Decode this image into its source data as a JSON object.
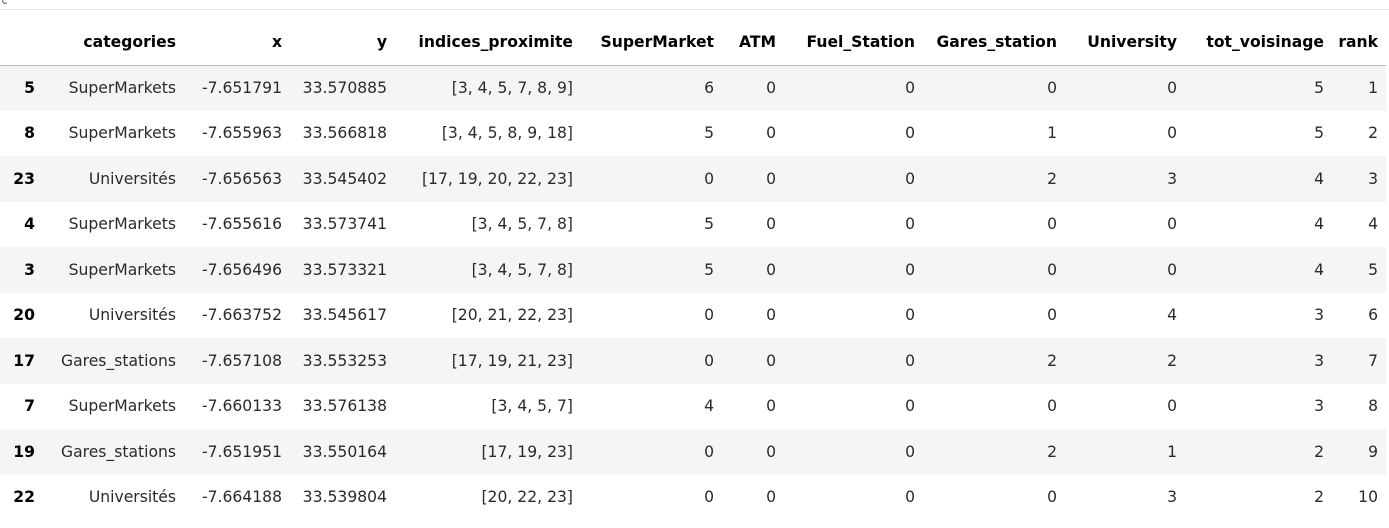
{
  "table": {
    "columns": [
      "",
      "categories",
      "x",
      "y",
      "indices_proximite",
      "SuperMarket",
      "ATM",
      "Fuel_Station",
      "Gares_station",
      "University",
      "tot_voisinage",
      "rank"
    ],
    "rows": [
      {
        "index": "5",
        "cells": [
          "SuperMarkets",
          "-7.651791",
          "33.570885",
          "[3, 4, 5, 7, 8, 9]",
          "6",
          "0",
          "0",
          "0",
          "0",
          "5",
          "1"
        ]
      },
      {
        "index": "8",
        "cells": [
          "SuperMarkets",
          "-7.655963",
          "33.566818",
          "[3, 4, 5, 8, 9, 18]",
          "5",
          "0",
          "0",
          "1",
          "0",
          "5",
          "2"
        ]
      },
      {
        "index": "23",
        "cells": [
          "Universités",
          "-7.656563",
          "33.545402",
          "[17, 19, 20, 22, 23]",
          "0",
          "0",
          "0",
          "2",
          "3",
          "4",
          "3"
        ]
      },
      {
        "index": "4",
        "cells": [
          "SuperMarkets",
          "-7.655616",
          "33.573741",
          "[3, 4, 5, 7, 8]",
          "5",
          "0",
          "0",
          "0",
          "0",
          "4",
          "4"
        ]
      },
      {
        "index": "3",
        "cells": [
          "SuperMarkets",
          "-7.656496",
          "33.573321",
          "[3, 4, 5, 7, 8]",
          "5",
          "0",
          "0",
          "0",
          "0",
          "4",
          "5"
        ]
      },
      {
        "index": "20",
        "cells": [
          "Universités",
          "-7.663752",
          "33.545617",
          "[20, 21, 22, 23]",
          "0",
          "0",
          "0",
          "0",
          "4",
          "3",
          "6"
        ]
      },
      {
        "index": "17",
        "cells": [
          "Gares_stations",
          "-7.657108",
          "33.553253",
          "[17, 19, 21, 23]",
          "0",
          "0",
          "0",
          "2",
          "2",
          "3",
          "7"
        ]
      },
      {
        "index": "7",
        "cells": [
          "SuperMarkets",
          "-7.660133",
          "33.576138",
          "[3, 4, 5, 7]",
          "4",
          "0",
          "0",
          "0",
          "0",
          "3",
          "8"
        ]
      },
      {
        "index": "19",
        "cells": [
          "Gares_stations",
          "-7.651951",
          "33.550164",
          "[17, 19, 23]",
          "0",
          "0",
          "0",
          "2",
          "1",
          "2",
          "9"
        ]
      },
      {
        "index": "22",
        "cells": [
          "Universités",
          "-7.664188",
          "33.539804",
          "[20, 22, 23]",
          "0",
          "0",
          "0",
          "0",
          "3",
          "2",
          "10"
        ]
      }
    ]
  }
}
